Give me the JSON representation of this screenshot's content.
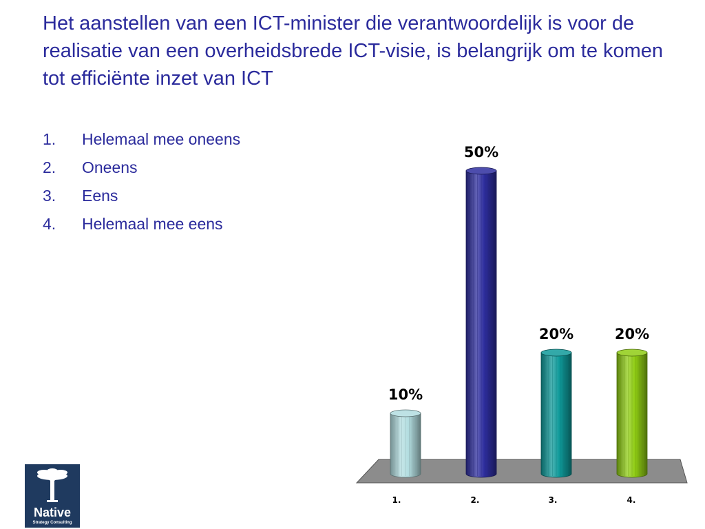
{
  "slide": {
    "title": "Het aanstellen van een ICT-minister die verantwoordelijk is voor de realisatie van een overheidsbrede ICT-visie, is belangrijk om te komen tot efficiënte inzet van ICT"
  },
  "options": [
    {
      "number": "1.",
      "label": "Helemaal mee oneens"
    },
    {
      "number": "2.",
      "label": "Oneens"
    },
    {
      "number": "3.",
      "label": "Eens"
    },
    {
      "number": "4.",
      "label": "Helemaal mee eens"
    }
  ],
  "chart_data": {
    "type": "bar",
    "categories": [
      "1.",
      "2.",
      "3.",
      "4."
    ],
    "values": [
      10,
      50,
      20,
      20
    ],
    "value_labels": [
      "10%",
      "50%",
      "20%",
      "20%"
    ],
    "colors": [
      "#b3dde0",
      "#2e2e9e",
      "#0f9a9a",
      "#8fcc14"
    ],
    "floor_color": "#8c8c8c",
    "ylim": [
      0,
      50
    ],
    "grid": false,
    "style": "3d-cylinder"
  },
  "logo": {
    "brand": "Native",
    "tagline": "Strategy Consulting"
  }
}
